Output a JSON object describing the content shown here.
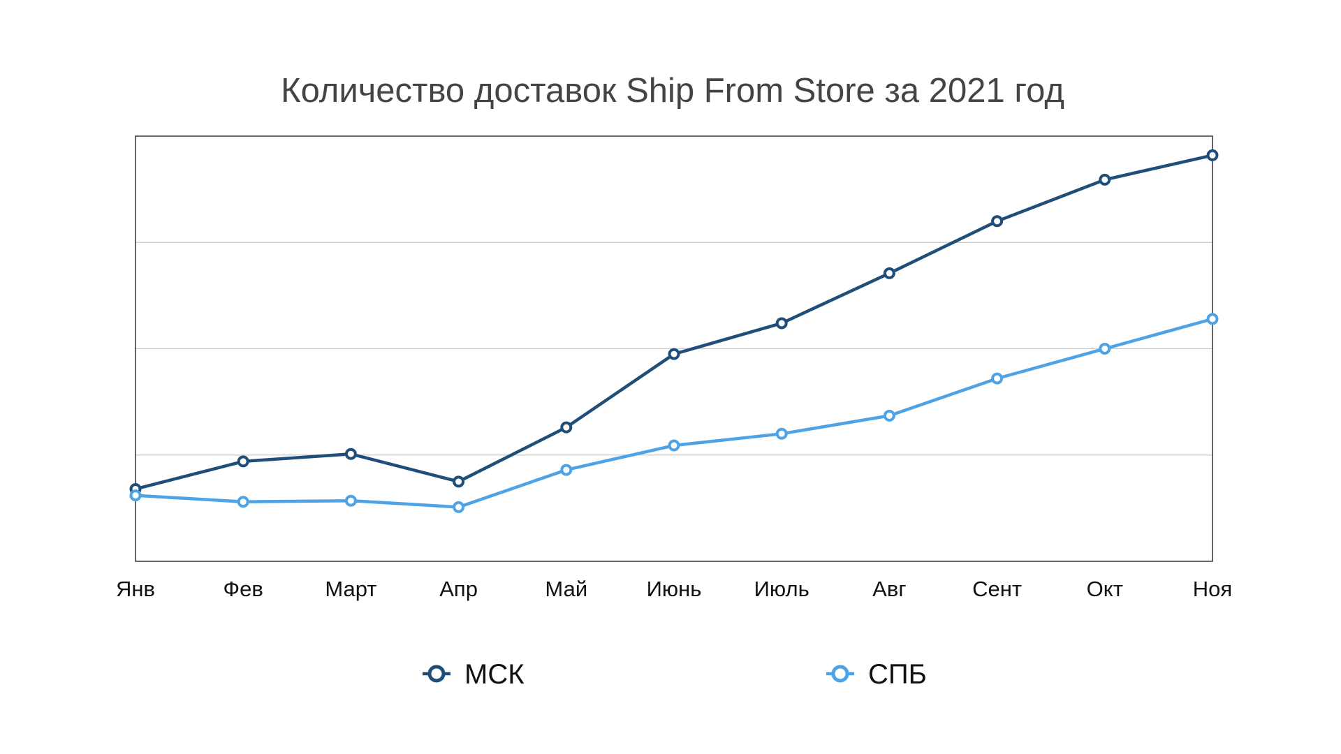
{
  "chart_data": {
    "type": "line",
    "title": "Количество доставок Ship From Store за 2021 год",
    "xlabel": "",
    "ylabel": "",
    "categories": [
      "Янв",
      "Фев",
      "Март",
      "Апр",
      "Май",
      "Июнь",
      "Июль",
      "Авг",
      "Сент",
      "Окт",
      "Ноя"
    ],
    "ylim": [
      0,
      4
    ],
    "y_tick_labels_shown": false,
    "grid": true,
    "legend_position": "bottom",
    "series": [
      {
        "name": "МСК",
        "color": "#1F4E79",
        "values": [
          0.68,
          0.94,
          1.01,
          0.75,
          1.26,
          1.95,
          2.24,
          2.71,
          3.2,
          3.59,
          3.82
        ]
      },
      {
        "name": "СПБ",
        "color": "#4DA3E6",
        "values": [
          0.62,
          0.56,
          0.57,
          0.51,
          0.86,
          1.09,
          1.2,
          1.37,
          1.72,
          2.0,
          2.28
        ]
      }
    ]
  }
}
